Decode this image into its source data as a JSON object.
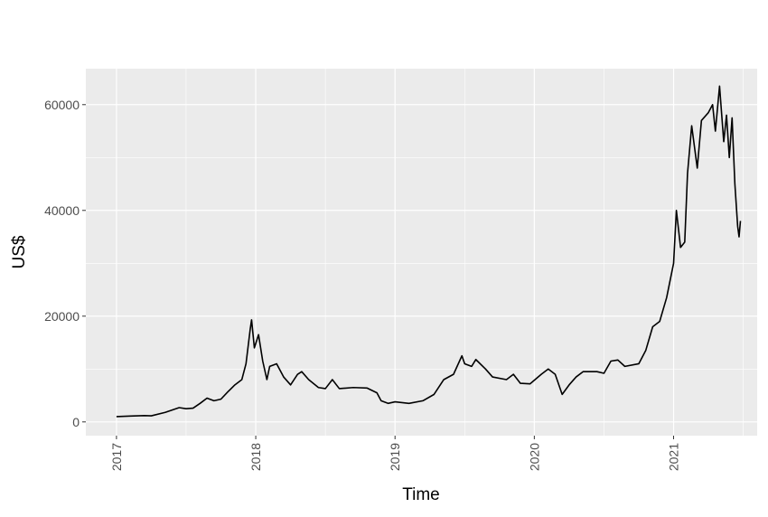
{
  "chart_data": {
    "type": "line",
    "x_label": "Time",
    "y_label": "US$",
    "xlim": [
      2016.78,
      2021.6
    ],
    "ylim": [
      -2600,
      66800
    ],
    "xticks": [
      2017,
      2018,
      2019,
      2020,
      2021
    ],
    "yticks": [
      0,
      20000,
      40000,
      60000
    ],
    "grid": true,
    "series": [
      {
        "color": "#000000",
        "x": [
          2017.0,
          2017.1,
          2017.2,
          2017.25,
          2017.35,
          2017.45,
          2017.5,
          2017.55,
          2017.6,
          2017.65,
          2017.7,
          2017.75,
          2017.8,
          2017.85,
          2017.9,
          2017.93,
          2017.96,
          2017.97,
          2017.99,
          2018.02,
          2018.05,
          2018.08,
          2018.1,
          2018.15,
          2018.2,
          2018.25,
          2018.3,
          2018.33,
          2018.38,
          2018.45,
          2018.5,
          2018.55,
          2018.6,
          2018.7,
          2018.8,
          2018.87,
          2018.9,
          2018.95,
          2019.0,
          2019.1,
          2019.2,
          2019.28,
          2019.35,
          2019.42,
          2019.48,
          2019.5,
          2019.55,
          2019.58,
          2019.65,
          2019.7,
          2019.8,
          2019.85,
          2019.9,
          2019.97,
          2020.05,
          2020.1,
          2020.15,
          2020.2,
          2020.25,
          2020.3,
          2020.35,
          2020.45,
          2020.5,
          2020.55,
          2020.6,
          2020.65,
          2020.75,
          2020.8,
          2020.85,
          2020.9,
          2020.95,
          2021.0,
          2021.02,
          2021.05,
          2021.08,
          2021.1,
          2021.13,
          2021.17,
          2021.2,
          2021.25,
          2021.28,
          2021.3,
          2021.33,
          2021.36,
          2021.38,
          2021.4,
          2021.42,
          2021.44,
          2021.46,
          2021.47,
          2021.48
        ],
        "values": [
          1000,
          1100,
          1200,
          1150,
          1800,
          2700,
          2500,
          2600,
          3500,
          4500,
          4000,
          4300,
          5700,
          7000,
          8000,
          11000,
          17500,
          19300,
          14000,
          16500,
          11500,
          8000,
          10500,
          11000,
          8500,
          7000,
          9000,
          9500,
          8000,
          6500,
          6300,
          8000,
          6300,
          6500,
          6400,
          5500,
          4000,
          3500,
          3800,
          3500,
          4000,
          5200,
          8000,
          9000,
          12500,
          11000,
          10500,
          11800,
          10000,
          8500,
          8000,
          9000,
          7300,
          7200,
          9000,
          10000,
          9000,
          5200,
          7000,
          8500,
          9500,
          9500,
          9200,
          11500,
          11700,
          10500,
          11000,
          13500,
          18000,
          19000,
          23500,
          30000,
          40000,
          33000,
          34000,
          47000,
          56000,
          48000,
          57000,
          58500,
          60000,
          55000,
          63500,
          53000,
          58000,
          50000,
          57500,
          45000,
          37000,
          35000,
          38000
        ]
      }
    ]
  }
}
